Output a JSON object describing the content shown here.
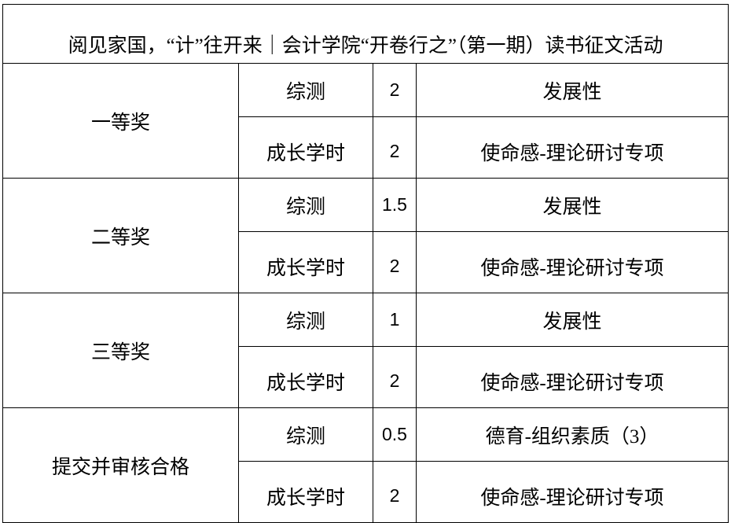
{
  "title": "阅见家国，“计”往开来｜会计学院“开卷行之”（第一期）读书征文活动",
  "awards": [
    {
      "name": "一等奖",
      "rows": [
        {
          "type": "综测",
          "value": "2",
          "category": "发展性"
        },
        {
          "type": "成长学时",
          "value": "2",
          "category": "使命感-理论研讨专项"
        }
      ]
    },
    {
      "name": "二等奖",
      "rows": [
        {
          "type": "综测",
          "value": "1.5",
          "category": "发展性"
        },
        {
          "type": "成长学时",
          "value": "2",
          "category": "使命感-理论研讨专项"
        }
      ]
    },
    {
      "name": "三等奖",
      "rows": [
        {
          "type": "综测",
          "value": "1",
          "category": "发展性"
        },
        {
          "type": "成长学时",
          "value": "2",
          "category": "使命感-理论研讨专项"
        }
      ]
    },
    {
      "name": "提交并审核合格",
      "rows": [
        {
          "type": "综测",
          "value": "0.5",
          "category": "德育-组织素质（3）"
        },
        {
          "type": "成长学时",
          "value": "2",
          "category": "使命感-理论研讨专项"
        }
      ]
    }
  ]
}
